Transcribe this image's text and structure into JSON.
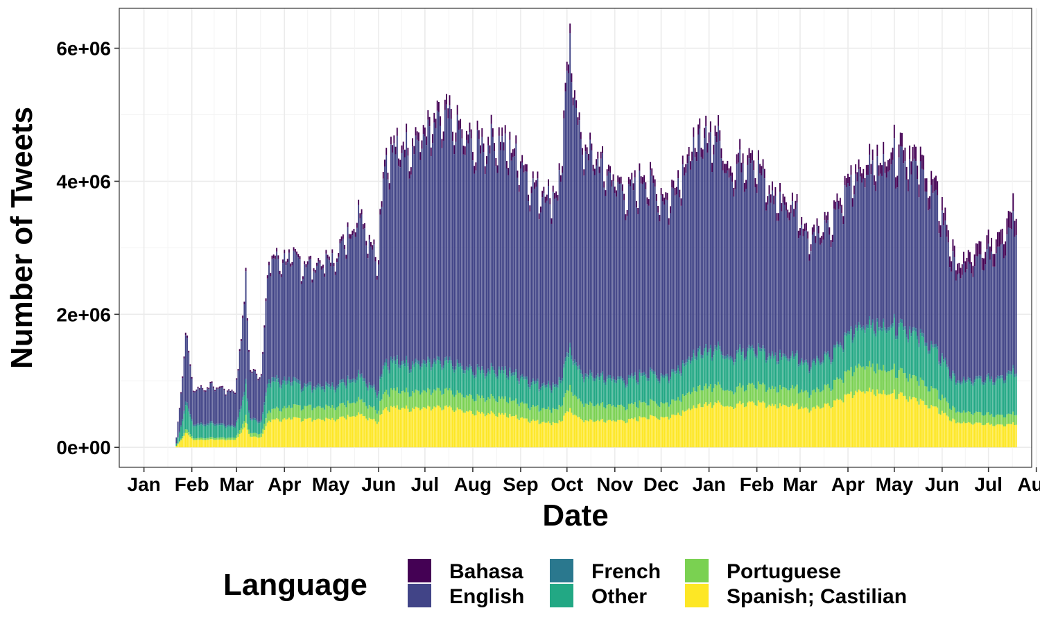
{
  "chart_data": {
    "type": "bar",
    "stacked": true,
    "xlabel": "Date",
    "ylabel": "Number of Tweets",
    "ylim": [
      -300000,
      6600000
    ],
    "x_range_days": [
      -16,
      575
    ],
    "grid": true,
    "legend_title": "Language",
    "legend_position": "bottom",
    "y_ticks": [
      {
        "value": 0,
        "label": "0e+00"
      },
      {
        "value": 2000000,
        "label": "2e+06"
      },
      {
        "value": 4000000,
        "label": "4e+06"
      },
      {
        "value": 6000000,
        "label": "6e+06"
      }
    ],
    "x_ticks": [
      {
        "date": "2020-01-01",
        "label": "Jan"
      },
      {
        "date": "2020-02-01",
        "label": "Feb"
      },
      {
        "date": "2020-03-01",
        "label": "Mar"
      },
      {
        "date": "2020-04-01",
        "label": "Apr"
      },
      {
        "date": "2020-05-01",
        "label": "May"
      },
      {
        "date": "2020-06-01",
        "label": "Jun"
      },
      {
        "date": "2020-07-01",
        "label": "Jul"
      },
      {
        "date": "2020-08-01",
        "label": "Aug"
      },
      {
        "date": "2020-09-01",
        "label": "Sep"
      },
      {
        "date": "2020-10-01",
        "label": "Oct"
      },
      {
        "date": "2020-11-01",
        "label": "Nov"
      },
      {
        "date": "2020-12-01",
        "label": "Dec"
      },
      {
        "date": "2021-01-01",
        "label": "Jan"
      },
      {
        "date": "2021-02-01",
        "label": "Feb"
      },
      {
        "date": "2021-03-01",
        "label": "Mar"
      },
      {
        "date": "2021-04-01",
        "label": "Apr"
      },
      {
        "date": "2021-05-01",
        "label": "May"
      },
      {
        "date": "2021-06-01",
        "label": "Jun"
      },
      {
        "date": "2021-07-01",
        "label": "Jul"
      },
      {
        "date": "2021-08-01",
        "label": "Aug"
      }
    ],
    "series": [
      {
        "name": "Spanish; Castilian",
        "color": "#fde725"
      },
      {
        "name": "Portuguese",
        "color": "#7ad151"
      },
      {
        "name": "Other",
        "color": "#22a884"
      },
      {
        "name": "French",
        "color": "#2a788e"
      },
      {
        "name": "English",
        "color": "#414487"
      },
      {
        "name": "Bahasa",
        "color": "#440154"
      }
    ],
    "legend_order": [
      "Bahasa",
      "English",
      "French",
      "Other",
      "Portuguese",
      "Spanish; Castilian"
    ],
    "daily_totals": {
      "note_sampling": "weekly anchor values (date, total tweets); daily bars interpolated with weekday variation",
      "anchors": [
        [
          "2020-01-22",
          150000
        ],
        [
          "2020-01-25",
          850000
        ],
        [
          "2020-01-28",
          1800000
        ],
        [
          "2020-02-02",
          900000
        ],
        [
          "2020-02-15",
          950000
        ],
        [
          "2020-02-29",
          850000
        ],
        [
          "2020-03-01",
          1100000
        ],
        [
          "2020-03-05",
          1900000
        ],
        [
          "2020-03-07",
          2600000
        ],
        [
          "2020-03-10",
          1150000
        ],
        [
          "2020-03-17",
          1150000
        ],
        [
          "2020-03-22",
          2900000
        ],
        [
          "2020-04-05",
          2900000
        ],
        [
          "2020-04-20",
          2800000
        ],
        [
          "2020-05-03",
          2900000
        ],
        [
          "2020-05-15",
          3400000
        ],
        [
          "2020-05-20",
          3650000
        ],
        [
          "2020-05-31",
          2900000
        ],
        [
          "2020-06-05",
          4500000
        ],
        [
          "2020-06-20",
          4700000
        ],
        [
          "2020-07-05",
          4900000
        ],
        [
          "2020-07-15",
          5100000
        ],
        [
          "2020-08-01",
          4650000
        ],
        [
          "2020-08-15",
          4800000
        ],
        [
          "2020-09-01",
          4450000
        ],
        [
          "2020-09-10",
          4000000
        ],
        [
          "2020-09-25",
          3900000
        ],
        [
          "2020-10-03",
          6100000
        ],
        [
          "2020-10-06",
          5600000
        ],
        [
          "2020-10-10",
          4700000
        ],
        [
          "2020-10-25",
          4300000
        ],
        [
          "2020-11-10",
          3900000
        ],
        [
          "2020-11-20",
          4200000
        ],
        [
          "2020-12-05",
          3800000
        ],
        [
          "2020-12-20",
          4600000
        ],
        [
          "2021-01-05",
          4900000
        ],
        [
          "2021-01-15",
          4300000
        ],
        [
          "2021-01-28",
          4600000
        ],
        [
          "2021-02-10",
          3900000
        ],
        [
          "2021-02-28",
          3700000
        ],
        [
          "2021-03-05",
          3300000
        ],
        [
          "2021-03-20",
          3400000
        ],
        [
          "2021-04-05",
          4300000
        ],
        [
          "2021-04-20",
          4400000
        ],
        [
          "2021-05-05",
          4700000
        ],
        [
          "2021-05-20",
          4300000
        ],
        [
          "2021-06-01",
          3700000
        ],
        [
          "2021-06-10",
          2800000
        ],
        [
          "2021-06-25",
          3000000
        ],
        [
          "2021-07-05",
          3200000
        ],
        [
          "2021-07-15",
          3600000
        ],
        [
          "2021-07-19",
          3900000
        ]
      ]
    },
    "stack_bounds_sample": [
      {
        "date": "2020-02-15",
        "spanish": 120000,
        "portuguese": 150000,
        "other": 350000,
        "french": 380000,
        "english": 930000,
        "bahasa": 950000
      },
      {
        "date": "2020-04-15",
        "spanish": 450000,
        "portuguese": 650000,
        "other": 950000,
        "french": 1000000,
        "english": 2850000,
        "bahasa": 2900000
      },
      {
        "date": "2020-07-15",
        "spanish": 600000,
        "portuguese": 850000,
        "other": 1250000,
        "french": 1300000,
        "english": 4900000,
        "bahasa": 5050000
      },
      {
        "date": "2020-10-15",
        "spanish": 400000,
        "portuguese": 650000,
        "other": 1050000,
        "french": 1100000,
        "english": 4400000,
        "bahasa": 4500000
      },
      {
        "date": "2021-01-15",
        "spanish": 650000,
        "portuguese": 900000,
        "other": 1400000,
        "french": 1450000,
        "english": 4300000,
        "bahasa": 4450000
      },
      {
        "date": "2021-04-10",
        "spanish": 900000,
        "portuguese": 1300000,
        "other": 1900000,
        "french": 1950000,
        "english": 4300000,
        "bahasa": 4450000
      },
      {
        "date": "2021-07-15",
        "spanish": 350000,
        "portuguese": 500000,
        "other": 1100000,
        "french": 1150000,
        "english": 3300000,
        "bahasa": 3550000
      }
    ]
  }
}
